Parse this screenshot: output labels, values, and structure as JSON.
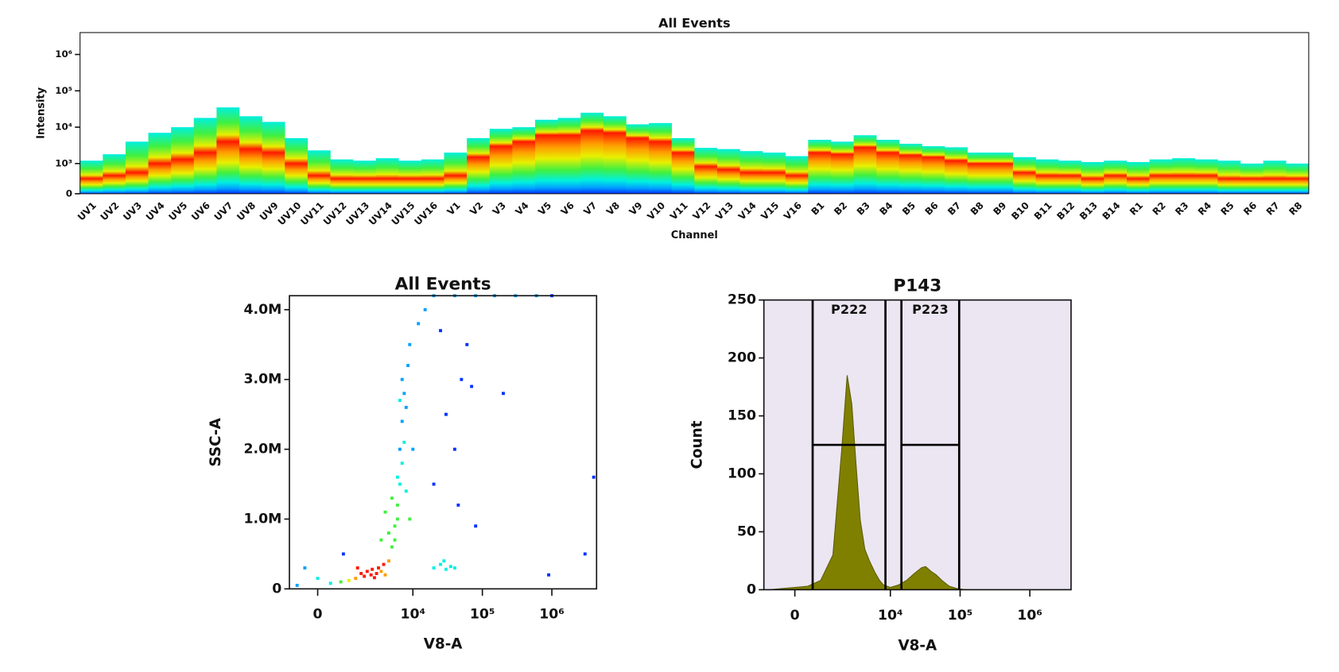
{
  "chart_data": [
    {
      "type": "spectrum",
      "title": "All Events",
      "ylabel": "Intensity",
      "xlabel": "Channel",
      "yscale": "biexponential",
      "ylim": [
        0,
        4000000
      ],
      "yticks": [
        0,
        {
          "value": 1000,
          "label": "10³"
        },
        {
          "value": 10000,
          "label": "10⁴"
        },
        {
          "value": 100000,
          "label": "10⁵"
        },
        {
          "value": 1000000,
          "label": "10⁶"
        }
      ],
      "categories": [
        "UV1",
        "UV2",
        "UV3",
        "UV4",
        "UV5",
        "UV6",
        "UV7",
        "UV8",
        "UV9",
        "UV10",
        "UV11",
        "UV12",
        "UV13",
        "UV14",
        "UV15",
        "UV16",
        "V1",
        "V2",
        "V3",
        "V4",
        "V5",
        "V6",
        "V7",
        "V8",
        "V9",
        "V10",
        "V11",
        "V12",
        "V13",
        "V14",
        "V15",
        "V16",
        "B1",
        "B2",
        "B3",
        "B4",
        "B5",
        "B6",
        "B7",
        "B8",
        "B9",
        "B10",
        "B11",
        "B12",
        "B13",
        "B14",
        "R1",
        "R2",
        "R3",
        "R4",
        "R5",
        "R6",
        "R7",
        "R8"
      ],
      "values": [
        1200,
        1800,
        4000,
        7000,
        10000,
        18000,
        35000,
        20000,
        14000,
        5000,
        2300,
        1300,
        1200,
        1400,
        1200,
        1300,
        2000,
        5000,
        9000,
        10000,
        16000,
        18000,
        25000,
        20000,
        12000,
        13000,
        5000,
        2700,
        2500,
        2200,
        2000,
        1600,
        4500,
        4000,
        6000,
        4500,
        3500,
        3000,
        2800,
        2000,
        2000,
        1500,
        1300,
        1200,
        1100,
        1200,
        1100,
        1300,
        1400,
        1300,
        1200,
        1000,
        1200,
        1000
      ],
      "peaks": [
        500,
        600,
        700,
        1000,
        1300,
        2000,
        4000,
        2500,
        2000,
        1000,
        600,
        500,
        500,
        500,
        500,
        500,
        600,
        1500,
        3000,
        4000,
        6000,
        6000,
        8000,
        7000,
        5000,
        4000,
        2000,
        900,
        800,
        700,
        700,
        600,
        2000,
        1800,
        2800,
        2000,
        1700,
        1500,
        1200,
        1000,
        1000,
        700,
        600,
        600,
        500,
        600,
        500,
        600,
        600,
        600,
        500,
        500,
        500,
        500
      ],
      "colormap": [
        "#0030ff",
        "#00a0ff",
        "#00f0e0",
        "#40f040",
        "#e8f000",
        "#ff9a00",
        "#ff1800"
      ]
    },
    {
      "type": "scatter",
      "title": "All Events",
      "xlabel": "V8-A",
      "ylabel": "SSC-A",
      "xscale": "biexponential",
      "xlim": [
        -1100,
        4400000
      ],
      "xticks": [
        0,
        {
          "value": 10000,
          "label": "10⁴"
        },
        {
          "value": 100000,
          "label": "10⁵"
        },
        {
          "value": 1000000,
          "label": "10⁶"
        }
      ],
      "ylim": [
        0,
        4200000
      ],
      "yticks": [
        0,
        {
          "value": 1000000,
          "label": "1.0M"
        },
        {
          "value": 2000000,
          "label": "2.0M"
        },
        {
          "value": 3000000,
          "label": "3.0M"
        },
        {
          "value": 4000000,
          "label": "4.0M"
        }
      ],
      "x": [
        1500,
        2000,
        2500,
        3000,
        3500,
        2200,
        2800,
        1800,
        3200,
        4000,
        1200,
        900,
        2600,
        3800,
        1600,
        4500,
        5000,
        5500,
        6000,
        6500,
        7000,
        7500,
        7000,
        6500,
        6000,
        5500,
        8000,
        7500,
        7000,
        8500,
        9000,
        6000,
        5000,
        4500,
        8000,
        9000,
        10000,
        12000,
        6500,
        4000,
        3500,
        20000,
        25000,
        30000,
        35000,
        40000,
        28000,
        20000,
        30000,
        50000,
        60000,
        40000,
        70000,
        45000,
        25000,
        80000,
        15000,
        200000,
        900000,
        4000000,
        3000000,
        -500,
        0,
        500,
        1000,
        -800,
        20000,
        40000,
        80000,
        150000,
        300000,
        600000,
        1000000
      ],
      "y": [
        150000,
        180000,
        200000,
        220000,
        250000,
        250000,
        160000,
        220000,
        300000,
        200000,
        120000,
        100000,
        280000,
        350000,
        300000,
        400000,
        600000,
        900000,
        1200000,
        1500000,
        1800000,
        2100000,
        2400000,
        2000000,
        1000000,
        700000,
        2600000,
        2800000,
        3000000,
        3200000,
        3500000,
        1600000,
        1300000,
        800000,
        1400000,
        1000000,
        2000000,
        3800000,
        2700000,
        1100000,
        700000,
        300000,
        350000,
        280000,
        320000,
        300000,
        400000,
        1500000,
        2500000,
        3000000,
        3500000,
        2000000,
        2900000,
        1200000,
        3700000,
        900000,
        4000000,
        2800000,
        200000,
        1600000,
        500000,
        300000,
        150000,
        80000,
        500000,
        50000,
        4200000,
        4200000,
        4200000,
        4200000,
        4200000,
        4200000,
        4200000
      ],
      "colormap": [
        "#0030ff",
        "#00a0ff",
        "#00f0e0",
        "#40f040",
        "#e8f000",
        "#ff9a00",
        "#ff1800"
      ]
    },
    {
      "type": "area",
      "title": "P143",
      "xlabel": "V8-A",
      "ylabel": "Count",
      "xscale": "biexponential",
      "xlim": [
        -1200,
        3900000
      ],
      "xticks": [
        0,
        {
          "value": 10000,
          "label": "10⁴"
        },
        {
          "value": 100000,
          "label": "10⁵"
        },
        {
          "value": 1000000,
          "label": "10⁶"
        }
      ],
      "ylim": [
        0,
        250
      ],
      "yticks": [
        0,
        50,
        100,
        150,
        200,
        250
      ],
      "x": [
        -1000,
        -500,
        0,
        500,
        1000,
        1500,
        2000,
        2400,
        2800,
        3200,
        3700,
        4300,
        5000,
        6000,
        7000,
        8000,
        10000,
        13000,
        17000,
        22000,
        28000,
        32000,
        38000,
        45000,
        55000,
        70000,
        90000,
        120000
      ],
      "values": [
        0,
        1,
        2,
        3,
        8,
        30,
        120,
        185,
        160,
        110,
        60,
        35,
        25,
        15,
        8,
        4,
        2,
        4,
        8,
        14,
        19,
        20,
        16,
        13,
        8,
        3,
        1,
        0
      ],
      "color": "#808000",
      "background": "#ebe6f2",
      "gates": [
        {
          "name": "P222",
          "range": [
            690,
            8500
          ],
          "level": 125
        },
        {
          "name": "P223",
          "range": [
            14400,
            97000
          ],
          "level": 125
        }
      ]
    }
  ]
}
